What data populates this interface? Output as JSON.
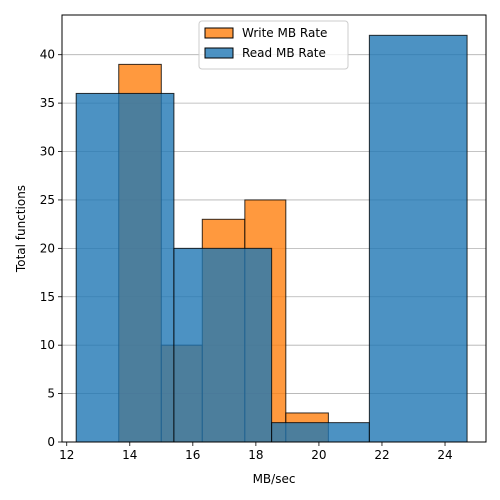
{
  "chart_data": {
    "type": "bar",
    "title": "",
    "xlabel": "MB/sec",
    "ylabel": "Total functions",
    "xlim": [
      11.85,
      25.3
    ],
    "ylim": [
      0,
      44.1
    ],
    "xticks": [
      12,
      14,
      16,
      18,
      20,
      22,
      24
    ],
    "yticks": [
      0,
      5,
      10,
      15,
      20,
      25,
      30,
      35,
      40
    ],
    "grid": "y",
    "legend_position": "top-center",
    "series": [
      {
        "name": "Write MB Rate",
        "color": "#ff7f0e",
        "bins": [
          {
            "x0": 13.65,
            "x1": 15.0,
            "value": 39
          },
          {
            "x0": 15.0,
            "x1": 16.3,
            "value": 10
          },
          {
            "x0": 16.3,
            "x1": 17.65,
            "value": 23
          },
          {
            "x0": 17.65,
            "x1": 18.95,
            "value": 25
          },
          {
            "x0": 18.95,
            "x1": 20.3,
            "value": 3
          }
        ]
      },
      {
        "name": "Read MB Rate",
        "color": "#1f77b4",
        "bins": [
          {
            "x0": 12.3,
            "x1": 15.4,
            "value": 36
          },
          {
            "x0": 15.4,
            "x1": 18.5,
            "value": 20
          },
          {
            "x0": 18.5,
            "x1": 21.6,
            "value": 2
          },
          {
            "x0": 21.6,
            "x1": 24.7,
            "value": 42
          }
        ]
      }
    ]
  }
}
